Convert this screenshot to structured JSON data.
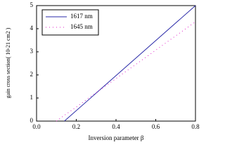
{
  "chart_data": {
    "type": "line",
    "xlabel": "Inversion parameter β",
    "ylabel": "gain cross section( 10-21 cm2 )",
    "xlim": [
      0,
      0.8
    ],
    "ylim": [
      0,
      5
    ],
    "xticks": [
      {
        "value": 0,
        "label": "0.0"
      },
      {
        "value": 0.2,
        "label": "0.2"
      },
      {
        "value": 0.4,
        "label": "0.4"
      },
      {
        "value": 0.6,
        "label": "0.6"
      },
      {
        "value": 0.8,
        "label": "0.8"
      }
    ],
    "yticks": [
      0,
      1,
      2,
      3,
      4,
      5
    ],
    "legend": "upper left",
    "series": [
      {
        "name": "1617 nm",
        "color": "#2a2aa8",
        "style": "solid",
        "x": [
          0.14,
          0.8
        ],
        "values": [
          0,
          5
        ]
      },
      {
        "name": "1645 nm",
        "color": "#e020c8",
        "style": "dotted",
        "x": [
          0.1,
          0.15,
          0.2,
          0.25,
          0.3,
          0.35,
          0.4,
          0.45,
          0.5,
          0.55,
          0.6,
          0.65,
          0.7,
          0.75,
          0.8
        ],
        "values": [
          0,
          0.31,
          0.61,
          0.92,
          1.23,
          1.54,
          1.84,
          2.15,
          2.46,
          2.76,
          3.07,
          3.38,
          3.69,
          3.99,
          4.3
        ]
      }
    ]
  }
}
